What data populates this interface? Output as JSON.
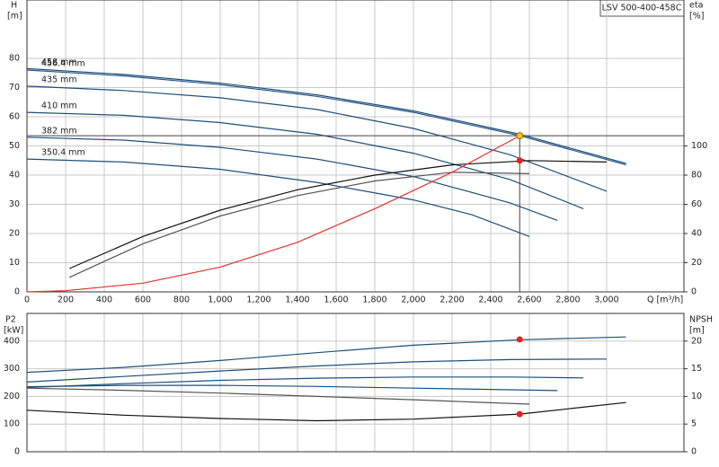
{
  "chart_data": [
    {
      "type": "line",
      "x_label": "Q [m³/h]",
      "y_label": "H",
      "y_unit": "[m]",
      "y2_label": "eta",
      "y2_unit": "[%]",
      "title": "LSV 500-400-458C",
      "xlim": [
        0,
        3400
      ],
      "xticks": [
        0,
        200,
        400,
        600,
        800,
        {
          "value": 1000,
          "label": "1,000"
        },
        {
          "value": 1200,
          "label": "1,200"
        },
        {
          "value": 1400,
          "label": "1,400"
        },
        {
          "value": 1600,
          "label": "1,600"
        },
        {
          "value": 1800,
          "label": "1,800"
        },
        {
          "value": 2000,
          "label": "2,000"
        },
        {
          "value": 2200,
          "label": "2,200"
        },
        {
          "value": 2400,
          "label": "2,400"
        },
        {
          "value": 2600,
          "label": "2,600"
        },
        {
          "value": 2800,
          "label": "2,800"
        },
        {
          "value": 3000,
          "label": "3,000"
        }
      ],
      "ylim": [
        0,
        100
      ],
      "yticks": [
        0,
        10,
        20,
        30,
        40,
        50,
        60,
        70,
        80
      ],
      "y2lim": [
        0,
        200
      ],
      "y2ticks": [
        0,
        20,
        40,
        60,
        80,
        100
      ],
      "grid": true,
      "series": [
        {
          "name": "458 mm",
          "color": "#1f4e79",
          "x": [
            0,
            500,
            1000,
            1500,
            2000,
            2550,
            3100
          ],
          "values": [
            76.5,
            74.5,
            71.5,
            67.5,
            62,
            54,
            44
          ]
        },
        {
          "name": "456.4 mm",
          "color": "#2a5a8a",
          "x": [
            0,
            500,
            1000,
            1500,
            2000,
            2550,
            3100
          ],
          "values": [
            76,
            74,
            71,
            67,
            61.5,
            53.5,
            43.5
          ]
        },
        {
          "name": "435 mm",
          "color": "#1f4e79",
          "x": [
            0,
            500,
            1000,
            1500,
            2000,
            2500,
            3000
          ],
          "values": [
            70.5,
            69,
            66.5,
            62.5,
            56,
            47,
            34.5
          ]
        },
        {
          "name": "410 mm",
          "color": "#1f4e79",
          "x": [
            0,
            500,
            1000,
            1500,
            2000,
            2500,
            2880
          ],
          "values": [
            61.5,
            60.5,
            58,
            54,
            47.5,
            38.5,
            28.5
          ]
        },
        {
          "name": "382 mm",
          "color": "#1f4e79",
          "x": [
            0,
            500,
            1000,
            1500,
            2000,
            2500,
            2745
          ],
          "values": [
            53,
            52,
            49.5,
            45.5,
            39.5,
            30.5,
            24.5
          ]
        },
        {
          "name": "350.4 mm",
          "color": "#1f4e79",
          "x": [
            0,
            500,
            1000,
            1500,
            2000,
            2300,
            2600
          ],
          "values": [
            45.5,
            44.5,
            42,
            37.5,
            31.5,
            26.5,
            19
          ]
        },
        {
          "color": "#111111",
          "axis": "y2",
          "x": [
            220,
            600,
            1000,
            1400,
            1800,
            2200,
            2600,
            3000
          ],
          "values": [
            16,
            38,
            56,
            70,
            80,
            87,
            90,
            89
          ]
        },
        {
          "color": "#555555",
          "axis": "y2",
          "x": [
            220,
            600,
            1000,
            1400,
            1800,
            2200,
            2600
          ],
          "values": [
            10,
            33,
            52,
            66,
            76,
            82,
            81
          ]
        },
        {
          "color": "#e83030",
          "x": [
            0,
            200,
            600,
            1000,
            1400,
            1800,
            2200,
            2550
          ],
          "values": [
            0,
            0.4,
            3,
            8.5,
            17,
            28.5,
            41,
            53.5
          ]
        }
      ],
      "markers": [
        {
          "x": 2550,
          "y": 53.5,
          "color": "#f5c518"
        },
        {
          "x": 2550,
          "y": 90,
          "axis": "y2",
          "color": "#e82020"
        }
      ]
    },
    {
      "type": "line",
      "y_label": "P2",
      "y_unit": "[kW]",
      "y2_label": "NPSH",
      "y2_unit": "[m]",
      "xlim": [
        0,
        3400
      ],
      "xticks": [
        0,
        200,
        400,
        600,
        800,
        1000,
        1200,
        1400,
        1600,
        1800,
        2000,
        2200,
        2400,
        2600,
        2800,
        3000
      ],
      "ylim": [
        0,
        500
      ],
      "yticks": [
        0,
        100,
        200,
        300,
        400
      ],
      "y2lim": [
        0,
        25
      ],
      "y2ticks": [
        0,
        5,
        10,
        15,
        20
      ],
      "grid": true,
      "series": [
        {
          "color": "#1f4e79",
          "x": [
            0,
            500,
            1000,
            1500,
            2000,
            2550,
            3100
          ],
          "values": [
            287,
            305,
            330,
            358,
            385,
            405,
            415
          ]
        },
        {
          "color": "#1f4e79",
          "x": [
            0,
            500,
            1000,
            1500,
            2000,
            2500,
            3000
          ],
          "values": [
            252,
            272,
            292,
            310,
            325,
            333,
            335
          ]
        },
        {
          "color": "#1f4e79",
          "x": [
            0,
            500,
            1000,
            1500,
            2000,
            2500,
            2880
          ],
          "values": [
            232,
            246,
            258,
            266,
            270,
            270,
            267
          ]
        },
        {
          "color": "#1f4e79",
          "x": [
            0,
            500,
            1000,
            1500,
            2000,
            2500,
            2745
          ],
          "values": [
            235,
            240,
            240,
            236,
            230,
            224,
            221
          ]
        },
        {
          "color": "#555555",
          "x": [
            0,
            500,
            1000,
            1500,
            2000,
            2300,
            2600
          ],
          "values": [
            230,
            222,
            212,
            200,
            188,
            180,
            172
          ]
        },
        {
          "color": "#111111",
          "axis": "y2",
          "x": [
            0,
            500,
            1000,
            1500,
            2000,
            2550,
            3100
          ],
          "values": [
            7.5,
            6.6,
            6,
            5.6,
            5.9,
            6.8,
            8.9
          ]
        }
      ],
      "markers": [
        {
          "x": 2550,
          "y": 406,
          "color": "#e82020"
        },
        {
          "x": 2550,
          "y": 6.8,
          "axis": "y2",
          "color": "#e82020"
        }
      ]
    }
  ]
}
